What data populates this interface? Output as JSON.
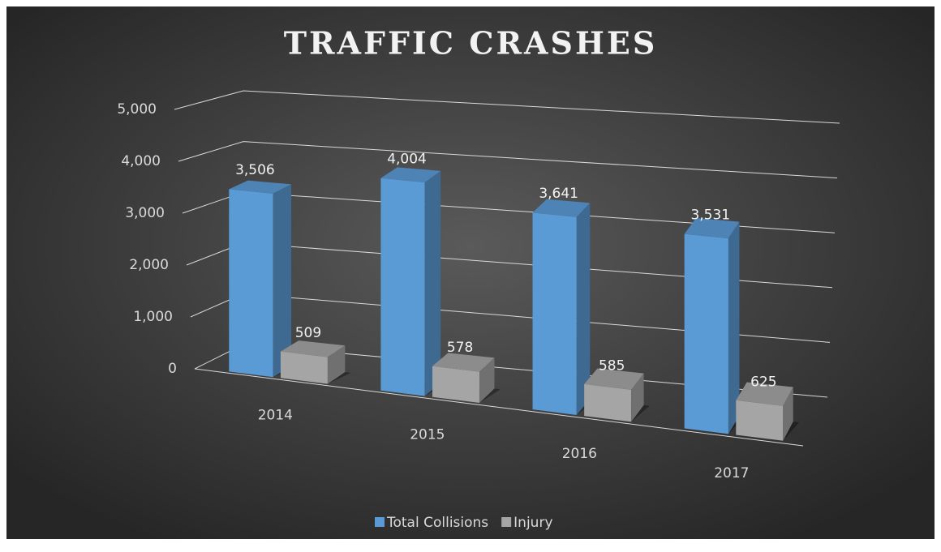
{
  "chart_data": {
    "type": "bar3d",
    "title": "TRAFFIC CRASHES",
    "categories": [
      "2014",
      "2015",
      "2016",
      "2017"
    ],
    "series": [
      {
        "name": "Total Collisions",
        "color": "#5b9bd5",
        "values": [
          3506,
          4004,
          3641,
          3531
        ],
        "value_labels": [
          "3,506",
          "4,004",
          "3,641",
          "3,531"
        ]
      },
      {
        "name": "Injury",
        "color": "#a5a5a5",
        "values": [
          509,
          578,
          585,
          625
        ]
      }
    ],
    "ylim": [
      0,
      5000
    ],
    "yticks": [
      0,
      {
        "value": 1000,
        "label": "1,000"
      },
      {
        "value": 2000,
        "label": "2,000"
      },
      {
        "value": 3000,
        "label": "3,000"
      },
      {
        "value": 4000,
        "label": "4,000"
      },
      {
        "value": 5000,
        "label": "5,000"
      }
    ],
    "grid": true,
    "legend": "bottom"
  }
}
